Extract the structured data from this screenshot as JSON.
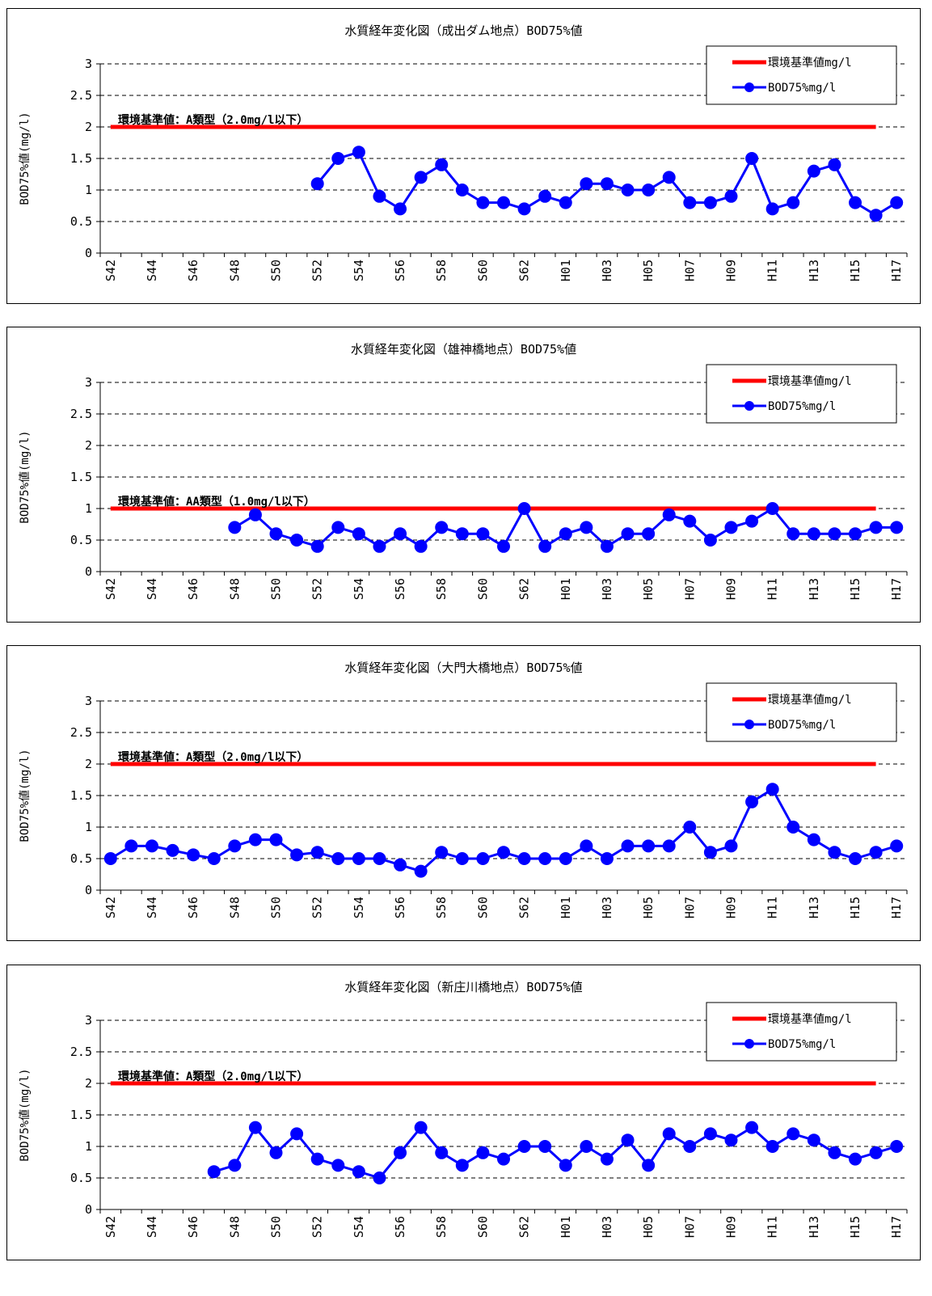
{
  "chart_data": [
    {
      "type": "line",
      "title": "水質経年変化図（成出ダム地点）BOD75%値",
      "ylabel": "BOD75%値(mg/l)",
      "ylim": [
        0,
        3
      ],
      "yticks": [
        "0",
        "0.5",
        "1",
        "1.5",
        "2",
        "2.5",
        "3"
      ],
      "yticks_values": [
        0,
        0.5,
        1,
        1.5,
        2,
        2.5,
        3
      ],
      "x_labels": [
        "S42",
        "S44",
        "S46",
        "S48",
        "S50",
        "S52",
        "S54",
        "S56",
        "S58",
        "S60",
        "S62",
        "H01",
        "H03",
        "H05",
        "H07",
        "H09",
        "H11",
        "H13",
        "H15",
        "H17"
      ],
      "categories": [
        "S42",
        "S43",
        "S44",
        "S45",
        "S46",
        "S47",
        "S48",
        "S49",
        "S50",
        "S51",
        "S52",
        "S53",
        "S54",
        "S55",
        "S56",
        "S57",
        "S58",
        "S59",
        "S60",
        "S61",
        "S62",
        "S63",
        "H01",
        "H02",
        "H03",
        "H04",
        "H05",
        "H06",
        "H07",
        "H08",
        "H09",
        "H10",
        "H11",
        "H12",
        "H13",
        "H14",
        "H15",
        "H16",
        "H17"
      ],
      "standard": {
        "label": "環境基準値：A類型（2.0mg/l以下）",
        "value": 2.0
      },
      "series": [
        {
          "name": "環境基準値mg/l",
          "color": "#ff0000",
          "values": [
            2,
            2,
            2,
            2,
            2,
            2,
            2,
            2,
            2,
            2,
            2,
            2,
            2,
            2,
            2,
            2,
            2,
            2,
            2,
            2,
            2,
            2,
            2,
            2,
            2,
            2,
            2,
            2,
            2,
            2,
            2,
            2,
            2,
            2,
            2,
            2,
            2,
            2,
            null
          ]
        },
        {
          "name": "BOD75%mg/l",
          "color": "#0000ff",
          "values": [
            null,
            null,
            null,
            null,
            null,
            null,
            null,
            null,
            null,
            null,
            1.1,
            1.5,
            1.6,
            0.9,
            0.7,
            1.2,
            1.4,
            1.0,
            0.8,
            0.8,
            0.7,
            0.9,
            0.8,
            1.1,
            1.1,
            1.0,
            1.0,
            1.2,
            0.8,
            0.8,
            0.9,
            1.5,
            0.7,
            0.8,
            1.3,
            1.4,
            0.8,
            0.6,
            0.8
          ]
        }
      ],
      "grid": true,
      "legend": "top-right"
    },
    {
      "type": "line",
      "title": "水質経年変化図（雄神橋地点）BOD75%値",
      "ylabel": "BOD75%値(mg/l)",
      "ylim": [
        0,
        3
      ],
      "yticks": [
        "0",
        "0.5",
        "1",
        "1.5",
        "2",
        "2.5",
        "3"
      ],
      "yticks_values": [
        0,
        0.5,
        1,
        1.5,
        2,
        2.5,
        3
      ],
      "x_labels": [
        "S42",
        "S44",
        "S46",
        "S48",
        "S50",
        "S52",
        "S54",
        "S56",
        "S58",
        "S60",
        "S62",
        "H01",
        "H03",
        "H05",
        "H07",
        "H09",
        "H11",
        "H13",
        "H15",
        "H17"
      ],
      "categories": [
        "S42",
        "S43",
        "S44",
        "S45",
        "S46",
        "S47",
        "S48",
        "S49",
        "S50",
        "S51",
        "S52",
        "S53",
        "S54",
        "S55",
        "S56",
        "S57",
        "S58",
        "S59",
        "S60",
        "S61",
        "S62",
        "S63",
        "H01",
        "H02",
        "H03",
        "H04",
        "H05",
        "H06",
        "H07",
        "H08",
        "H09",
        "H10",
        "H11",
        "H12",
        "H13",
        "H14",
        "H15",
        "H16",
        "H17"
      ],
      "standard": {
        "label": "環境基準値：AA類型（1.0mg/l以下）",
        "value": 1.0
      },
      "series": [
        {
          "name": "環境基準値mg/l",
          "color": "#ff0000",
          "values": [
            1,
            1,
            1,
            1,
            1,
            1,
            1,
            1,
            1,
            1,
            1,
            1,
            1,
            1,
            1,
            1,
            1,
            1,
            1,
            1,
            1,
            1,
            1,
            1,
            1,
            1,
            1,
            1,
            1,
            1,
            1,
            1,
            1,
            1,
            1,
            1,
            1,
            1,
            null
          ]
        },
        {
          "name": "BOD75%mg/l",
          "color": "#0000ff",
          "values": [
            null,
            null,
            null,
            null,
            null,
            null,
            0.7,
            0.9,
            0.6,
            0.5,
            0.4,
            0.7,
            0.6,
            0.4,
            0.6,
            0.4,
            0.7,
            0.6,
            0.6,
            0.4,
            1.0,
            0.4,
            0.6,
            0.7,
            0.4,
            0.6,
            0.6,
            0.9,
            0.8,
            0.5,
            0.7,
            0.8,
            1.0,
            0.6,
            0.6,
            0.6,
            0.6,
            0.7,
            0.7
          ]
        }
      ],
      "grid": true,
      "legend": "top-right"
    },
    {
      "type": "line",
      "title": "水質経年変化図（大門大橋地点）BOD75%値",
      "ylabel": "BOD75%値(mg/l)",
      "ylim": [
        0,
        3
      ],
      "yticks": [
        "0",
        "0.5",
        "1",
        "1.5",
        "2",
        "2.5",
        "3"
      ],
      "yticks_values": [
        0,
        0.5,
        1,
        1.5,
        2,
        2.5,
        3
      ],
      "x_labels": [
        "S42",
        "S44",
        "S46",
        "S48",
        "S50",
        "S52",
        "S54",
        "S56",
        "S58",
        "S60",
        "S62",
        "H01",
        "H03",
        "H05",
        "H07",
        "H09",
        "H11",
        "H13",
        "H15",
        "H17"
      ],
      "categories": [
        "S42",
        "S43",
        "S44",
        "S45",
        "S46",
        "S47",
        "S48",
        "S49",
        "S50",
        "S51",
        "S52",
        "S53",
        "S54",
        "S55",
        "S56",
        "S57",
        "S58",
        "S59",
        "S60",
        "S61",
        "S62",
        "S63",
        "H01",
        "H02",
        "H03",
        "H04",
        "H05",
        "H06",
        "H07",
        "H08",
        "H09",
        "H10",
        "H11",
        "H12",
        "H13",
        "H14",
        "H15",
        "H16",
        "H17"
      ],
      "standard": {
        "label": "環境基準値：A類型（2.0mg/l以下）",
        "value": 2.0
      },
      "series": [
        {
          "name": "環境基準値mg/l",
          "color": "#ff0000",
          "values": [
            2,
            2,
            2,
            2,
            2,
            2,
            2,
            2,
            2,
            2,
            2,
            2,
            2,
            2,
            2,
            2,
            2,
            2,
            2,
            2,
            2,
            2,
            2,
            2,
            2,
            2,
            2,
            2,
            2,
            2,
            2,
            2,
            2,
            2,
            2,
            2,
            2,
            2,
            null
          ]
        },
        {
          "name": "BOD75%mg/l",
          "color": "#0000ff",
          "values": [
            0.5,
            0.7,
            0.7,
            0.63,
            0.56,
            0.5,
            0.7,
            0.8,
            0.8,
            0.56,
            0.6,
            0.5,
            0.5,
            0.5,
            0.4,
            0.3,
            0.6,
            0.5,
            0.5,
            0.6,
            0.5,
            0.5,
            0.5,
            0.7,
            0.5,
            0.7,
            0.7,
            0.7,
            1.0,
            0.6,
            0.7,
            1.4,
            1.6,
            1.0,
            0.8,
            0.6,
            0.5,
            0.6,
            0.7
          ]
        }
      ],
      "grid": true,
      "legend": "top-right"
    },
    {
      "type": "line",
      "title": "水質経年変化図（新庄川橋地点）BOD75%値",
      "ylabel": "BOD75%値(mg/l)",
      "ylim": [
        0,
        3
      ],
      "yticks": [
        "0",
        "0.5",
        "1",
        "1.5",
        "2",
        "2.5",
        "3"
      ],
      "yticks_values": [
        0,
        0.5,
        1,
        1.5,
        2,
        2.5,
        3
      ],
      "x_labels": [
        "S42",
        "S44",
        "S46",
        "S48",
        "S50",
        "S52",
        "S54",
        "S56",
        "S58",
        "S60",
        "S62",
        "H01",
        "H03",
        "H05",
        "H07",
        "H09",
        "H11",
        "H13",
        "H15",
        "H17"
      ],
      "categories": [
        "S42",
        "S43",
        "S44",
        "S45",
        "S46",
        "S47",
        "S48",
        "S49",
        "S50",
        "S51",
        "S52",
        "S53",
        "S54",
        "S55",
        "S56",
        "S57",
        "S58",
        "S59",
        "S60",
        "S61",
        "S62",
        "S63",
        "H01",
        "H02",
        "H03",
        "H04",
        "H05",
        "H06",
        "H07",
        "H08",
        "H09",
        "H10",
        "H11",
        "H12",
        "H13",
        "H14",
        "H15",
        "H16",
        "H17"
      ],
      "standard": {
        "label": "環境基準値：A類型（2.0mg/l以下）",
        "value": 2.0
      },
      "series": [
        {
          "name": "環境基準値mg/l",
          "color": "#ff0000",
          "values": [
            2,
            2,
            2,
            2,
            2,
            2,
            2,
            2,
            2,
            2,
            2,
            2,
            2,
            2,
            2,
            2,
            2,
            2,
            2,
            2,
            2,
            2,
            2,
            2,
            2,
            2,
            2,
            2,
            2,
            2,
            2,
            2,
            2,
            2,
            2,
            2,
            2,
            2,
            null
          ]
        },
        {
          "name": "BOD75%mg/l",
          "color": "#0000ff",
          "values": [
            null,
            null,
            null,
            null,
            null,
            0.6,
            0.7,
            1.3,
            0.9,
            1.2,
            0.8,
            0.7,
            0.6,
            0.5,
            0.9,
            1.3,
            0.9,
            0.7,
            0.9,
            0.8,
            1.0,
            1.0,
            0.7,
            1.0,
            0.8,
            1.1,
            0.7,
            1.2,
            1.0,
            1.2,
            1.1,
            1.3,
            1.0,
            1.2,
            1.1,
            0.9,
            0.8,
            0.9,
            1.0
          ]
        }
      ],
      "grid": true,
      "legend": "top-right"
    }
  ]
}
